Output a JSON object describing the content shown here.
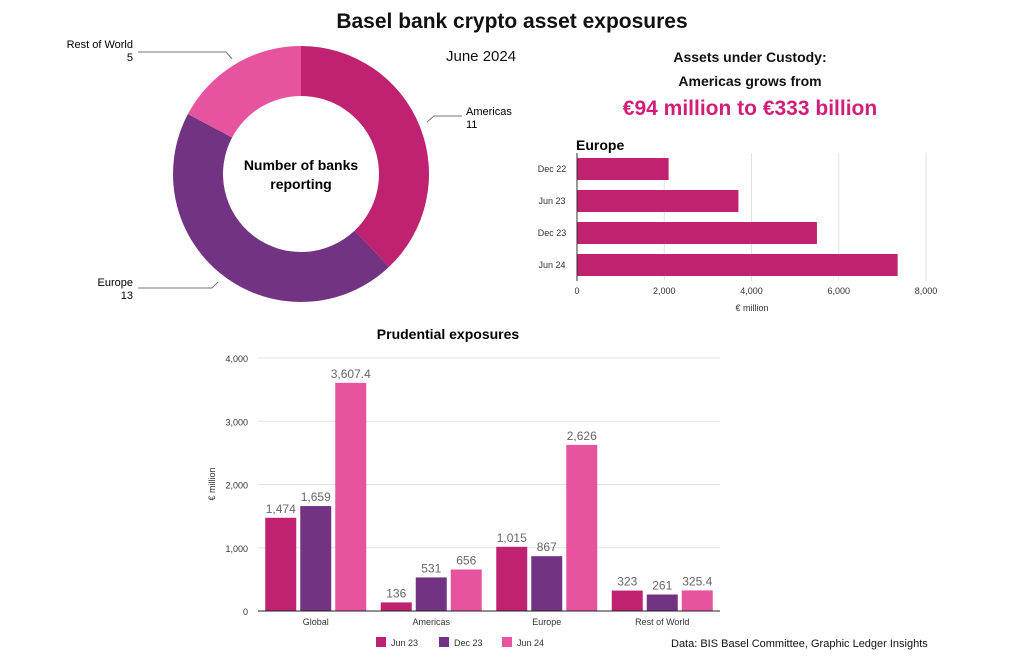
{
  "title": "Basel bank crypto asset exposures",
  "subtitle": "June 2024",
  "custody": {
    "line1": "Assets under Custody:",
    "line2": "Americas grows from",
    "headline": "€94 million to €333 billion"
  },
  "source": "Data: BIS Basel Committee, Graphic Ledger Insights",
  "colors": {
    "jun23": "#be2270",
    "dec23": "#733383",
    "jun24": "#e6539e",
    "europe_bar": "#be2270"
  },
  "chart_data": [
    {
      "type": "pie",
      "donut": true,
      "center_label": [
        "Number of banks",
        "reporting"
      ],
      "slices": [
        {
          "label": "Americas",
          "value": 11,
          "color": "#be2270"
        },
        {
          "label": "Europe",
          "value": 13,
          "color": "#733383"
        },
        {
          "label": "Rest of World",
          "value": 5,
          "color": "#e6539e"
        }
      ]
    },
    {
      "type": "bar",
      "orientation": "horizontal",
      "title": "Europe",
      "categories": [
        "Dec 22",
        "Jun 23",
        "Dec 23",
        "Jun 24"
      ],
      "values": [
        2100,
        3700,
        5500,
        7350
      ],
      "xlabel": "€ million",
      "xlim": [
        0,
        8000
      ],
      "ticks": [
        "0",
        "2,000",
        "4,000",
        "6,000",
        "8,000"
      ],
      "tick_values": [
        0,
        2000,
        4000,
        6000,
        8000
      ],
      "grid": true
    },
    {
      "type": "bar",
      "title": "Prudential exposures",
      "categories": [
        "Global",
        "Americas",
        "Europe",
        "Rest of World"
      ],
      "series": [
        {
          "name": "Jun 23",
          "values": [
            1474,
            136,
            1015,
            323
          ],
          "labels": [
            "1,474",
            "136",
            "1,015",
            "323"
          ],
          "color": "#be2270"
        },
        {
          "name": "Dec 23",
          "values": [
            1659,
            531,
            867,
            261
          ],
          "labels": [
            "1,659",
            "531",
            "867",
            "261"
          ],
          "color": "#733383"
        },
        {
          "name": "Jun 24",
          "values": [
            3607.4,
            656,
            2626,
            325.4
          ],
          "labels": [
            "3,607.4",
            "656",
            "2,626",
            "325.4"
          ],
          "color": "#e6539e"
        }
      ],
      "ylabel": "€ million",
      "ylim": [
        0,
        4000
      ],
      "ticks": [
        "0",
        "1,000",
        "2,000",
        "3,000",
        "4,000"
      ],
      "tick_values": [
        0,
        1000,
        2000,
        3000,
        4000
      ],
      "grid": true,
      "legend": "bottom"
    }
  ]
}
